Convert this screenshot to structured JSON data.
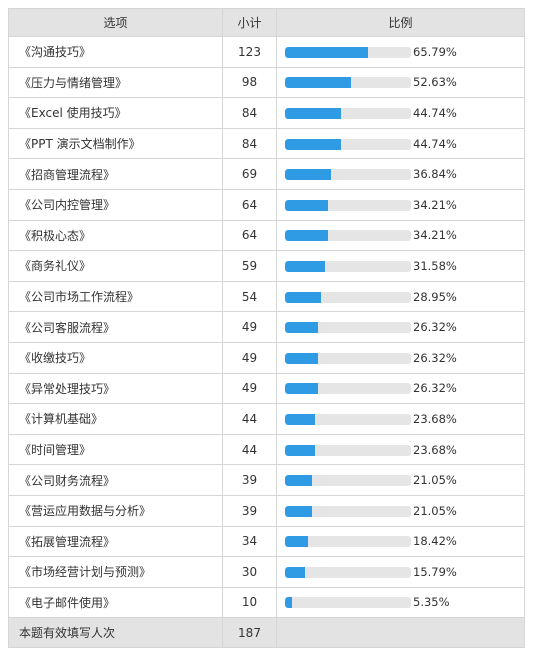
{
  "header": {
    "option": "选项",
    "count": "小计",
    "ratio": "比例"
  },
  "rows": [
    {
      "label": "《沟通技巧》",
      "count": "123",
      "pct": "65.79%",
      "value": 65.79
    },
    {
      "label": "《压力与情绪管理》",
      "count": "98",
      "pct": "52.63%",
      "value": 52.63
    },
    {
      "label": "《Excel 使用技巧》",
      "count": "84",
      "pct": "44.74%",
      "value": 44.74
    },
    {
      "label": "《PPT 演示文档制作》",
      "count": "84",
      "pct": "44.74%",
      "value": 44.74
    },
    {
      "label": "《招商管理流程》",
      "count": "69",
      "pct": "36.84%",
      "value": 36.84
    },
    {
      "label": "《公司内控管理》",
      "count": "64",
      "pct": "34.21%",
      "value": 34.21
    },
    {
      "label": "《积极心态》",
      "count": "64",
      "pct": "34.21%",
      "value": 34.21
    },
    {
      "label": "《商务礼仪》",
      "count": "59",
      "pct": "31.58%",
      "value": 31.58
    },
    {
      "label": "《公司市场工作流程》",
      "count": "54",
      "pct": "28.95%",
      "value": 28.95
    },
    {
      "label": "《公司客服流程》",
      "count": "49",
      "pct": "26.32%",
      "value": 26.32
    },
    {
      "label": "《收缴技巧》",
      "count": "49",
      "pct": "26.32%",
      "value": 26.32
    },
    {
      "label": "《异常处理技巧》",
      "count": "49",
      "pct": "26.32%",
      "value": 26.32
    },
    {
      "label": "《计算机基础》",
      "count": "44",
      "pct": "23.68%",
      "value": 23.68
    },
    {
      "label": "《时间管理》",
      "count": "44",
      "pct": "23.68%",
      "value": 23.68
    },
    {
      "label": "《公司财务流程》",
      "count": "39",
      "pct": "21.05%",
      "value": 21.05
    },
    {
      "label": "《营运应用数据与分析》",
      "count": "39",
      "pct": "21.05%",
      "value": 21.05
    },
    {
      "label": "《拓展管理流程》",
      "count": "34",
      "pct": "18.42%",
      "value": 18.42
    },
    {
      "label": "《市场经营计划与预测》",
      "count": "30",
      "pct": "15.79%",
      "value": 15.79
    },
    {
      "label": "《电子邮件使用》",
      "count": "10",
      "pct": "5.35%",
      "value": 5.35
    }
  ],
  "footer": {
    "label": "本题有效填写人次",
    "count": "187"
  },
  "colors": {
    "bar": "#2f9be5",
    "track": "#e5e5e5",
    "header_bg": "#e3e3e3"
  }
}
